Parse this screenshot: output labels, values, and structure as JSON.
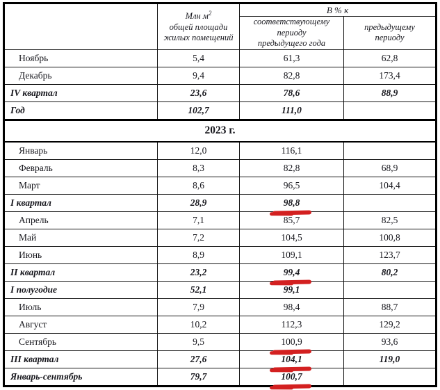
{
  "header": {
    "unit_line1": "Млн м",
    "unit_sup": "2",
    "unit_line2": "общей площади",
    "unit_line3": "жилых помещений",
    "percent_group": "В % к",
    "yoy_line1": "соответствующему",
    "yoy_line2": "периоду",
    "yoy_line3": "предыдущего года",
    "prev_line1": "предыдущему",
    "prev_line2": "периоду"
  },
  "section_header": "2023 г.",
  "colors": {
    "mark_red": "#d32020",
    "text": "#17171d",
    "border": "#000000"
  },
  "rows_2022": [
    {
      "label": "Ноябрь",
      "area": "5,4",
      "yoy": "61,3",
      "prev": "62,8",
      "summary": false,
      "marked": false
    },
    {
      "label": "Декабрь",
      "area": "9,4",
      "yoy": "82,8",
      "prev": "173,4",
      "summary": false,
      "marked": false
    },
    {
      "label": "IV квартал",
      "area": "23,6",
      "yoy": "78,6",
      "prev": "88,9",
      "summary": true,
      "marked": false
    },
    {
      "label": "Год",
      "area": "102,7",
      "yoy": "111,0",
      "prev": "",
      "summary": true,
      "marked": false
    }
  ],
  "rows_2023": [
    {
      "label": "Январь",
      "area": "12,0",
      "yoy": "116,1",
      "prev": "",
      "summary": false,
      "marked": false
    },
    {
      "label": "Февраль",
      "area": "8,3",
      "yoy": "82,8",
      "prev": "68,9",
      "summary": false,
      "marked": false
    },
    {
      "label": "Март",
      "area": "8,6",
      "yoy": "96,5",
      "prev": "104,4",
      "summary": false,
      "marked": false
    },
    {
      "label": "I квартал",
      "area": "28,9",
      "yoy": "98,8",
      "prev": "",
      "summary": true,
      "marked": true
    },
    {
      "label": "Апрель",
      "area": "7,1",
      "yoy": "85,7",
      "prev": "82,5",
      "summary": false,
      "marked": false
    },
    {
      "label": "Май",
      "area": "7,2",
      "yoy": "104,5",
      "prev": "100,8",
      "summary": false,
      "marked": false
    },
    {
      "label": "Июнь",
      "area": "8,9",
      "yoy": "109,1",
      "prev": "123,7",
      "summary": false,
      "marked": false
    },
    {
      "label": "II квартал",
      "area": "23,2",
      "yoy": "99,4",
      "prev": "80,2",
      "summary": true,
      "marked": true
    },
    {
      "label": "I полугодие",
      "area": "52,1",
      "yoy": "99,1",
      "prev": "",
      "summary": true,
      "marked": false
    },
    {
      "label": "Июль",
      "area": "7,9",
      "yoy": "98,4",
      "prev": "88,7",
      "summary": false,
      "marked": false
    },
    {
      "label": "Август",
      "area": "10,2",
      "yoy": "112,3",
      "prev": "129,2",
      "summary": false,
      "marked": false
    },
    {
      "label": "Сентябрь",
      "area": "9,5",
      "yoy": "100,9",
      "prev": "93,6",
      "summary": false,
      "marked": true
    },
    {
      "label": "III квартал",
      "area": "27,6",
      "yoy": "104,1",
      "prev": "119,0",
      "summary": true,
      "marked": true
    },
    {
      "label": "Январь-сентябрь",
      "area": "79,7",
      "yoy": "100,7",
      "prev": "",
      "summary": true,
      "marked": true
    }
  ]
}
